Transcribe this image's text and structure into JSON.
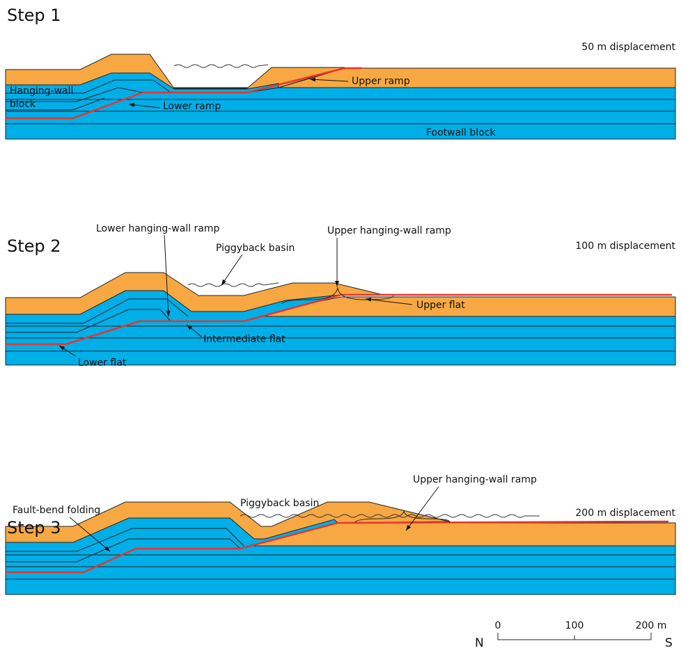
{
  "steps": [
    {
      "title": "Step 1",
      "displacement": "50 m displacement",
      "labels": [
        "Upper ramp",
        "Hanging-wall",
        "block",
        "Lower ramp",
        "Footwall block"
      ]
    },
    {
      "title": "Step 2",
      "displacement": "100 m displacement",
      "labels": [
        "Lower hanging-wall ramp",
        "Piggyback basin",
        "Upper hanging-wall ramp",
        "Upper flat",
        "Intermediate flat",
        "Lower flat"
      ]
    },
    {
      "title": "Step 3",
      "displacement": "200 m displacement",
      "labels": [
        "Upper hanging-wall ramp",
        "Piggyback basin",
        "Fault-bend folding"
      ]
    }
  ],
  "scale": {
    "north": "N",
    "south": "S",
    "ticks": [
      "0",
      "100",
      "200 m"
    ]
  }
}
